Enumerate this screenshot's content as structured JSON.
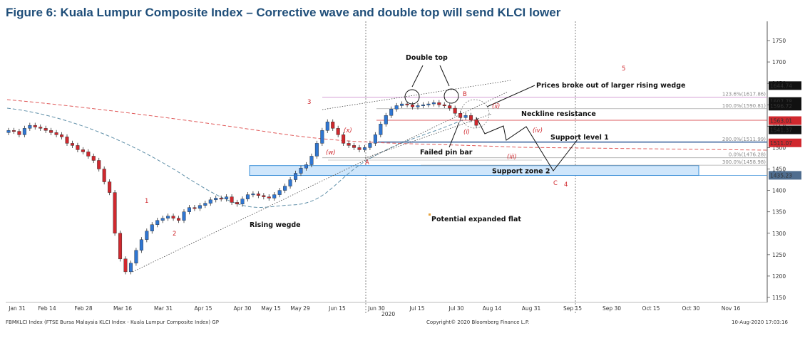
{
  "title": "Figure 6: Kuala Lumpur Composite Index – Corrective wave and double top will send KLCI lower",
  "chart_data": {
    "type": "candlestick",
    "x_ticks": [
      "Jan 31",
      "Feb 14",
      "Feb 28",
      "Mar 16",
      "Mar 31",
      "Apr 15",
      "Apr 30",
      "May 15",
      "May 29",
      "Jun 15",
      "Jun 30",
      "Jul 15",
      "Jul 30",
      "Aug 14",
      "Aug 31",
      "Sep 15",
      "Sep 30",
      "Oct 15",
      "Oct 30",
      "Nov 16"
    ],
    "year_label": "2020",
    "y_ticks": [
      1150,
      1200,
      1250,
      1300,
      1350,
      1400,
      1450,
      1500,
      1550,
      1600,
      1650,
      1700,
      1750
    ],
    "ylim": [
      1135,
      1780
    ],
    "price_tags": [
      {
        "text": "1644.74",
        "value": 1644.74,
        "color": "#111111"
      },
      {
        "text": "1607.78",
        "value": 1607.78,
        "color": "#111111"
      },
      {
        "text": "1596.72",
        "value": 1596.72,
        "color": "#111111"
      },
      {
        "text": "1563.01",
        "value": 1563.01,
        "color": "#d0282e"
      },
      {
        "text": "1541.37",
        "value": 1541.37,
        "color": "#111111"
      },
      {
        "text": "1511.07",
        "value": 1511.07,
        "color": "#d0282e"
      },
      {
        "text": "1435.23",
        "value": 1435.23,
        "color": "#4f6d8f"
      }
    ],
    "fib_levels": [
      {
        "label": "123.6%(1617.86)",
        "value": 1617.86,
        "color": "#c97fc9"
      },
      {
        "label": "100.0%(1590.81)",
        "value": 1590.81,
        "color": "#aaaaaa"
      },
      {
        "label": "200.0%(1511.99)",
        "value": 1511.99,
        "color": "#4a6fa5"
      },
      {
        "label": "0.0%(1476.28)",
        "value": 1476.28,
        "color": "#aaaaaa"
      },
      {
        "label": "300.0%(1458.98)",
        "value": 1458.98,
        "color": "#aaaaaa"
      }
    ],
    "support_zone": {
      "label": "Support zone 2",
      "low": 1435,
      "high": 1458
    },
    "closes": [
      1540,
      1538,
      1530,
      1545,
      1552,
      1548,
      1545,
      1540,
      1535,
      1530,
      1525,
      1510,
      1505,
      1495,
      1490,
      1480,
      1470,
      1450,
      1420,
      1395,
      1300,
      1240,
      1210,
      1230,
      1260,
      1285,
      1305,
      1320,
      1330,
      1335,
      1340,
      1335,
      1330,
      1350,
      1360,
      1358,
      1365,
      1370,
      1378,
      1382,
      1380,
      1385,
      1372,
      1368,
      1380,
      1390,
      1392,
      1388,
      1385,
      1382,
      1390,
      1400,
      1410,
      1425,
      1440,
      1452,
      1460,
      1480,
      1510,
      1540,
      1560,
      1545,
      1530,
      1510,
      1505,
      1500,
      1495,
      1500,
      1510,
      1530,
      1555,
      1575,
      1590,
      1598,
      1602,
      1600,
      1595,
      1598,
      1600,
      1602,
      1605,
      1600,
      1598,
      1592,
      1580,
      1570,
      1575,
      1565,
      1552
    ]
  },
  "annotations": {
    "double_top": "Double top",
    "breakout": "Prices broke out of larger rising wedge",
    "neckline": "Neckline resistance",
    "support1": "Support level 1",
    "failed_pin": "Failed pin bar",
    "rising_wedge": "Rising wegde",
    "expanded_flat": "Potential expanded flat"
  },
  "waves": {
    "w1": "1",
    "w2": "2",
    "w3": "3",
    "w4": "4",
    "w5": "5",
    "wB": "B",
    "wC": "C",
    "wA": "A",
    "x": "(x)",
    "w": "(w)",
    "ii": "(ii)",
    "i": "(i)",
    "iii": "(iii)",
    "iv": "(iv)"
  },
  "footer": {
    "left": "FBMKLCI Index (FTSE Bursa Malaysia KLCI Index - Kuala Lumpur Composite Index) GP",
    "center": "Copyright© 2020 Bloomberg Finance L.P.",
    "right": "10-Aug-2020 17:03:16"
  }
}
